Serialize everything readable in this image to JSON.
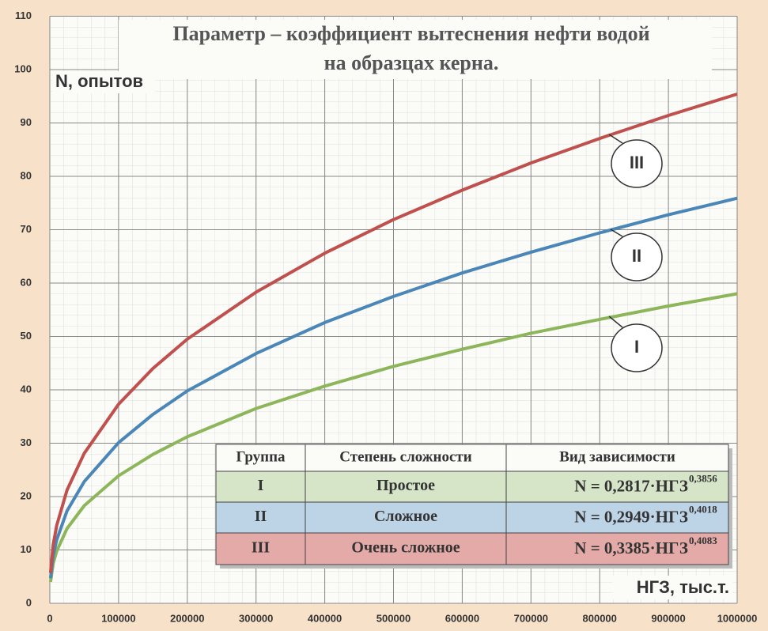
{
  "chart_data": {
    "type": "line",
    "title": [
      "Параметр – коэффициент вытеснения нефти водой",
      "на образцах керна."
    ],
    "y_label": "N, опытов",
    "x_label": "НГЗ, тыс.т.",
    "x": [
      1000,
      5000,
      10000,
      25000,
      50000,
      100000,
      150000,
      200000,
      300000,
      400000,
      500000,
      600000,
      700000,
      800000,
      900000,
      1000000
    ],
    "series": [
      {
        "name": "I",
        "color": "#8db65a",
        "values": [
          4.0,
          7.5,
          9.8,
          14.0,
          18.3,
          23.9,
          27.9,
          31.2,
          36.5,
          40.7,
          44.4,
          47.6,
          50.6,
          53.2,
          55.7,
          58.0
        ]
      },
      {
        "name": "II",
        "color": "#4a86b8",
        "values": [
          4.7,
          9.0,
          11.9,
          17.3,
          22.8,
          30.1,
          35.4,
          39.8,
          46.8,
          52.6,
          57.5,
          61.9,
          65.8,
          69.4,
          72.8,
          75.9
        ]
      },
      {
        "name": "III",
        "color": "#c0504d",
        "values": [
          5.7,
          11.0,
          14.6,
          21.2,
          28.1,
          37.3,
          44.0,
          49.5,
          58.3,
          65.6,
          71.9,
          77.4,
          82.5,
          87.1,
          91.4,
          95.4
        ]
      }
    ],
    "xlim": [
      0,
      1000000
    ],
    "xticks": [
      0,
      100000,
      200000,
      300000,
      400000,
      500000,
      600000,
      700000,
      800000,
      900000,
      1000000
    ],
    "ylim": [
      0,
      110
    ],
    "yticks": [
      0,
      10,
      20,
      30,
      40,
      50,
      60,
      70,
      80,
      90,
      100,
      110
    ],
    "grid": true,
    "table": {
      "header": [
        "Группа",
        "Степень сложности",
        "Вид зависимости"
      ],
      "rows": [
        {
          "group": "I",
          "complexity": "Простое",
          "formula": "N = 0,2817·НГЗ",
          "exponent": "0,3856"
        },
        {
          "group": "II",
          "complexity": "Сложное",
          "formula": "N = 0,2949·НГЗ",
          "exponent": "0,4018"
        },
        {
          "group": "III",
          "complexity": "Очень сложное",
          "formula": "N = 0,3385·НГЗ",
          "exponent": "0,4083"
        }
      ]
    }
  }
}
